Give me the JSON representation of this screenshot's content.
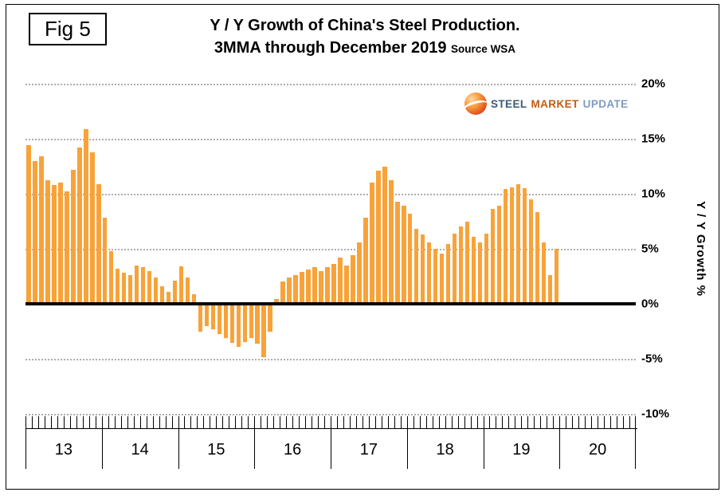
{
  "figure": {
    "fig_label": "Fig 5",
    "title_line1": "Y / Y Growth of China's Steel Production.",
    "title_line2": "3MMA through December 2019",
    "source": "Source WSA"
  },
  "logo": {
    "steel": "STEEL",
    "market": "MARKET",
    "update": "UPDATE"
  },
  "colors": {
    "bar": "#F8A23A",
    "zero_line": "#000000",
    "gridline": "#ADADAD",
    "logo_steel": "#3C5A78",
    "logo_market": "#C45911",
    "logo_update": "#7E9BBD"
  },
  "chart_data": {
    "type": "bar",
    "title": "Y / Y Growth of China's Steel Production. 3MMA through December 2019",
    "source": "Source WSA",
    "xlabel": "",
    "ylabel": "Y / Y Growth %",
    "ylim": [
      -10,
      20
    ],
    "ytick_step": 5,
    "ytick_values": [
      20,
      15,
      10,
      5,
      0,
      -5,
      -10
    ],
    "ytick_labels": [
      "20%",
      "15%",
      "10%",
      "5%",
      "0%",
      "-5%",
      "-10%"
    ],
    "xtick_labels": [
      "13",
      "14",
      "15",
      "16",
      "17",
      "18",
      "19",
      "20"
    ],
    "frequency": "monthly",
    "x_start": "2013-01",
    "x_end": "2019-12",
    "n_points": 84,
    "grid": "horizontal-dotted",
    "legend": "none",
    "bar_color": "#F8A23A",
    "series": [
      {
        "name": "Y/Y growth % (3MMA)",
        "values": [
          14.4,
          13.0,
          13.4,
          11.2,
          10.8,
          11.0,
          10.2,
          12.2,
          14.2,
          15.9,
          13.8,
          10.9,
          7.8,
          4.8,
          3.2,
          2.8,
          2.6,
          3.5,
          3.3,
          3.0,
          2.4,
          1.6,
          1.1,
          2.1,
          3.4,
          2.4,
          0.9,
          -2.4,
          -1.9,
          -2.2,
          -2.6,
          -3.0,
          -3.4,
          -3.8,
          -3.3,
          -3.0,
          -3.5,
          -4.7,
          -2.4,
          0.4,
          2.0,
          2.4,
          2.6,
          2.9,
          3.1,
          3.3,
          3.0,
          3.3,
          3.6,
          4.2,
          3.5,
          4.4,
          5.6,
          7.8,
          11.0,
          12.1,
          12.5,
          11.2,
          9.3,
          8.9,
          8.2,
          6.8,
          6.3,
          5.6,
          5.0,
          4.6,
          5.4,
          6.4,
          7.0,
          7.5,
          6.1,
          5.6,
          6.4,
          8.6,
          8.9,
          10.4,
          10.6,
          10.9,
          10.5,
          9.5,
          8.3,
          5.6,
          2.6,
          5.0
        ]
      }
    ]
  }
}
